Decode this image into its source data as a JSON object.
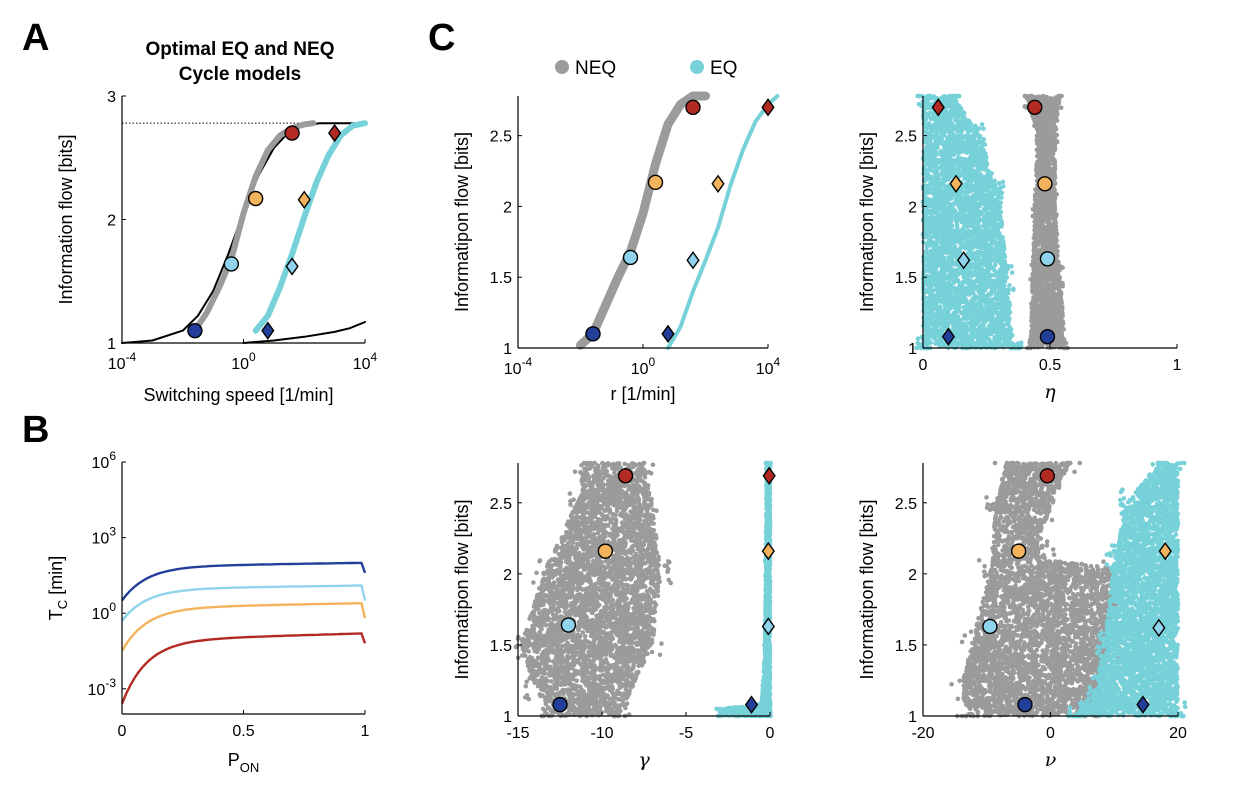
{
  "labels": {
    "A": "A",
    "B": "B",
    "C": "C"
  },
  "colors": {
    "neq_gray": "#9b9b9b",
    "eq_cyan": "#77d1d8",
    "dark_blue": "#233f9a",
    "light_blue": "#8fd3ec",
    "orange": "#f3b35c",
    "red": "#b32a23",
    "black": "#000000"
  },
  "legend": {
    "neq": "NEQ",
    "eq": "EQ"
  },
  "chart_data": [
    {
      "id": "A",
      "type": "line",
      "title_line1": "Optimal EQ and NEQ",
      "title_line2": "Cycle models",
      "xlabel": "Switching speed [1/min]",
      "ylabel": "Information flow [bits]",
      "xscale": "log10",
      "xlim": [
        -4,
        4
      ],
      "ylim": [
        1,
        3
      ],
      "xticks": [
        {
          "v": -4,
          "base": "10",
          "exp": "-4"
        },
        {
          "v": 0,
          "base": "10",
          "exp": "0"
        },
        {
          "v": 4,
          "base": "10",
          "exp": "4"
        }
      ],
      "yticks": [
        {
          "v": 1,
          "label": "1"
        },
        {
          "v": 2,
          "label": "2"
        },
        {
          "v": 3,
          "label": "3"
        }
      ],
      "dotted_max": 2.78,
      "series": [
        {
          "name": "NEQ envelope",
          "color": "black",
          "width": 2,
          "x": [
            -4,
            -3,
            -2,
            -1.5,
            -1,
            -0.5,
            0,
            0.5,
            1,
            1.5,
            2,
            2.5,
            3,
            3.5,
            4
          ],
          "y": [
            1.0,
            1.02,
            1.1,
            1.22,
            1.42,
            1.72,
            2.06,
            2.36,
            2.58,
            2.71,
            2.76,
            2.78,
            2.78,
            2.78,
            2.78
          ]
        },
        {
          "name": "NEQ",
          "color": "neq_gray",
          "width": 6,
          "x": [
            -1.6,
            -1.2,
            -0.8,
            -0.4,
            0,
            0.4,
            0.8,
            1.2,
            1.6,
            2.0,
            2.3
          ],
          "y": [
            1.1,
            1.25,
            1.45,
            1.68,
            2.05,
            2.35,
            2.56,
            2.68,
            2.74,
            2.77,
            2.78
          ]
        },
        {
          "name": "EQ",
          "color": "eq_cyan",
          "width": 6,
          "x": [
            0.4,
            0.8,
            1.2,
            1.6,
            2.0,
            2.4,
            2.8,
            3.2,
            3.6,
            4.0
          ],
          "y": [
            1.1,
            1.22,
            1.45,
            1.72,
            2.02,
            2.3,
            2.52,
            2.68,
            2.76,
            2.78
          ]
        },
        {
          "name": "Lower curve",
          "color": "black",
          "width": 2,
          "x": [
            0,
            1,
            2,
            3,
            3.5,
            4
          ],
          "y": [
            1.0,
            1.02,
            1.05,
            1.09,
            1.12,
            1.17
          ]
        }
      ],
      "markers": [
        {
          "shape": "circle",
          "color": "dark_blue",
          "x": -1.6,
          "y": 1.1
        },
        {
          "shape": "circle",
          "color": "light_blue",
          "x": -0.4,
          "y": 1.64
        },
        {
          "shape": "circle",
          "color": "orange",
          "x": 0.4,
          "y": 2.17
        },
        {
          "shape": "circle",
          "color": "red",
          "x": 1.6,
          "y": 2.7
        },
        {
          "shape": "diamond",
          "color": "dark_blue",
          "x": 0.8,
          "y": 1.1
        },
        {
          "shape": "diamond",
          "color": "light_blue",
          "x": 1.6,
          "y": 1.62
        },
        {
          "shape": "diamond",
          "color": "orange",
          "x": 2.0,
          "y": 2.16
        },
        {
          "shape": "diamond",
          "color": "red",
          "x": 3.0,
          "y": 2.7
        }
      ]
    },
    {
      "id": "B",
      "type": "line",
      "xlabel_main": "P",
      "xlabel_sub": "ON",
      "ylabel_main": "T",
      "ylabel_sub": "C",
      "ylabel_rest": " [min]",
      "yscale": "log10",
      "xlim": [
        0,
        1
      ],
      "ylim": [
        -4,
        6
      ],
      "xticks": [
        {
          "v": 0,
          "label": "0"
        },
        {
          "v": 0.5,
          "label": "0.5"
        },
        {
          "v": 1,
          "label": "1"
        }
      ],
      "yticks": [
        {
          "v": -3,
          "base": "10",
          "exp": "-3"
        },
        {
          "v": 0,
          "base": "10",
          "exp": "0"
        },
        {
          "v": 3,
          "base": "10",
          "exp": "3"
        },
        {
          "v": 6,
          "base": "10",
          "exp": "6"
        }
      ],
      "series": [
        {
          "name": "dark blue",
          "color": "dark_blue",
          "top": 2.0,
          "bottom": 0.5,
          "end": 1.6
        },
        {
          "name": "light blue",
          "color": "light_blue",
          "top": 1.1,
          "bottom": -0.3,
          "end": 0.5
        },
        {
          "name": "orange",
          "color": "orange",
          "top": 0.4,
          "bottom": -1.5,
          "end": -0.2
        },
        {
          "name": "red",
          "color": "red",
          "top": -0.8,
          "bottom": -3.6,
          "end": -1.2
        }
      ]
    },
    {
      "id": "C1",
      "type": "scatter",
      "xlabel": "r [1/min]",
      "ylabel": "Informatipon flow [bits]",
      "xscale": "log10",
      "xlim": [
        -4,
        4
      ],
      "ylim": [
        1,
        2.78
      ],
      "xticks": [
        {
          "v": -4,
          "base": "10",
          "exp": "-4"
        },
        {
          "v": 0,
          "base": "10",
          "exp": "0"
        },
        {
          "v": 4,
          "base": "10",
          "exp": "4"
        }
      ],
      "yticks": [
        {
          "v": 1,
          "label": "1"
        },
        {
          "v": 1.5,
          "label": "1.5"
        },
        {
          "v": 2,
          "label": "2"
        },
        {
          "v": 2.5,
          "label": "2.5"
        }
      ],
      "bands": [
        {
          "color": "neq_gray",
          "width": 9,
          "x": [
            -2.0,
            -1.6,
            -1.2,
            -0.8,
            -0.4,
            0,
            0.4,
            0.8,
            1.2,
            1.6,
            2.0
          ],
          "y": [
            1.02,
            1.1,
            1.3,
            1.5,
            1.68,
            1.95,
            2.3,
            2.58,
            2.72,
            2.78,
            2.78
          ]
        },
        {
          "color": "eq_cyan",
          "width": 4,
          "x": [
            0.8,
            1.2,
            1.6,
            2.0,
            2.4,
            2.8,
            3.2,
            3.6,
            4.0,
            4.4
          ],
          "y": [
            1.0,
            1.15,
            1.4,
            1.62,
            1.85,
            2.15,
            2.4,
            2.6,
            2.72,
            2.78
          ]
        }
      ],
      "markers": [
        {
          "shape": "circle",
          "color": "dark_blue",
          "x": -1.6,
          "y": 1.1
        },
        {
          "shape": "circle",
          "color": "light_blue",
          "x": -0.4,
          "y": 1.64
        },
        {
          "shape": "circle",
          "color": "orange",
          "x": 0.4,
          "y": 2.17
        },
        {
          "shape": "circle",
          "color": "red",
          "x": 1.6,
          "y": 2.7
        },
        {
          "shape": "diamond",
          "color": "dark_blue",
          "x": 0.8,
          "y": 1.1
        },
        {
          "shape": "diamond",
          "color": "light_blue",
          "x": 1.6,
          "y": 1.62
        },
        {
          "shape": "diamond",
          "color": "orange",
          "x": 2.4,
          "y": 2.16
        },
        {
          "shape": "diamond",
          "color": "red",
          "x": 4.0,
          "y": 2.7
        }
      ]
    },
    {
      "id": "C2",
      "type": "scatter",
      "xlabel": "η",
      "ylabel": "Informatipon flow [bits]",
      "xlim": [
        0,
        1
      ],
      "ylim": [
        1,
        2.78
      ],
      "xticks": [
        {
          "v": 0,
          "label": "0"
        },
        {
          "v": 0.5,
          "label": "0.5"
        },
        {
          "v": 1,
          "label": "1"
        }
      ],
      "yticks": [
        {
          "v": 1,
          "label": "1"
        },
        {
          "v": 1.5,
          "label": "1.5"
        },
        {
          "v": 2,
          "label": "2"
        },
        {
          "v": 2.5,
          "label": "2.5"
        }
      ],
      "clouds": [
        {
          "color": "eq_cyan",
          "n": 3500,
          "poly": [
            [
              0.0,
              1.0
            ],
            [
              0.36,
              1.0
            ],
            [
              0.33,
              1.5
            ],
            [
              0.3,
              2.1
            ],
            [
              0.22,
              2.5
            ],
            [
              0.12,
              2.78
            ],
            [
              0.0,
              2.78
            ]
          ]
        },
        {
          "color": "neq_gray",
          "n": 2000,
          "poly": [
            [
              0.42,
              1.0
            ],
            [
              0.56,
              1.0
            ],
            [
              0.54,
              1.5
            ],
            [
              0.52,
              2.0
            ],
            [
              0.52,
              2.5
            ],
            [
              0.54,
              2.78
            ],
            [
              0.41,
              2.78
            ],
            [
              0.45,
              2.5
            ],
            [
              0.44,
              2.0
            ],
            [
              0.43,
              1.5
            ]
          ]
        }
      ],
      "markers": [
        {
          "shape": "circle",
          "color": "dark_blue",
          "x": 0.49,
          "y": 1.08
        },
        {
          "shape": "circle",
          "color": "light_blue",
          "x": 0.49,
          "y": 1.63
        },
        {
          "shape": "circle",
          "color": "orange",
          "x": 0.48,
          "y": 2.16
        },
        {
          "shape": "circle",
          "color": "red",
          "x": 0.44,
          "y": 2.7
        },
        {
          "shape": "diamond",
          "color": "dark_blue",
          "x": 0.1,
          "y": 1.08
        },
        {
          "shape": "diamond",
          "color": "light_blue",
          "x": 0.16,
          "y": 1.62
        },
        {
          "shape": "diamond",
          "color": "orange",
          "x": 0.13,
          "y": 2.16
        },
        {
          "shape": "diamond",
          "color": "red",
          "x": 0.06,
          "y": 2.7
        }
      ]
    },
    {
      "id": "C3",
      "type": "scatter",
      "xlabel": "γ",
      "ylabel": "Informatipon flow [bits]",
      "xlim": [
        -15,
        0
      ],
      "ylim": [
        1,
        2.78
      ],
      "xticks": [
        {
          "v": -15,
          "label": "-15"
        },
        {
          "v": -10,
          "label": "-10"
        },
        {
          "v": -5,
          "label": "-5"
        },
        {
          "v": 0,
          "label": "0"
        }
      ],
      "yticks": [
        {
          "v": 1,
          "label": "1"
        },
        {
          "v": 1.5,
          "label": "1.5"
        },
        {
          "v": 2,
          "label": "2"
        },
        {
          "v": 2.5,
          "label": "2.5"
        }
      ],
      "clouds": [
        {
          "color": "neq_gray",
          "n": 4000,
          "poly": [
            [
              -13.0,
              1.0
            ],
            [
              -9.0,
              1.0
            ],
            [
              -7.0,
              1.5
            ],
            [
              -6.5,
              2.0
            ],
            [
              -7.0,
              2.5
            ],
            [
              -7.5,
              2.78
            ],
            [
              -11.0,
              2.78
            ],
            [
              -11.5,
              2.5
            ],
            [
              -13.5,
              2.0
            ],
            [
              -14.8,
              1.5
            ],
            [
              -14.0,
              1.2
            ]
          ]
        },
        {
          "color": "eq_cyan",
          "n": 1500,
          "poly": [
            [
              -0.6,
              1.0
            ],
            [
              0.0,
              1.0
            ],
            [
              0.0,
              2.78
            ],
            [
              -0.2,
              2.78
            ],
            [
              -0.25,
              2.0
            ],
            [
              -0.3,
              1.5
            ],
            [
              -0.4,
              1.2
            ]
          ]
        },
        {
          "color": "eq_cyan",
          "n": 300,
          "poly": [
            [
              -3.0,
              1.0
            ],
            [
              -0.5,
              1.0
            ],
            [
              -0.5,
              1.08
            ],
            [
              -3.0,
              1.05
            ]
          ]
        }
      ],
      "markers": [
        {
          "shape": "circle",
          "color": "dark_blue",
          "x": -12.5,
          "y": 1.08
        },
        {
          "shape": "circle",
          "color": "light_blue",
          "x": -12.0,
          "y": 1.64
        },
        {
          "shape": "circle",
          "color": "orange",
          "x": -9.8,
          "y": 2.16
        },
        {
          "shape": "circle",
          "color": "red",
          "x": -8.6,
          "y": 2.69
        },
        {
          "shape": "diamond",
          "color": "dark_blue",
          "x": -1.1,
          "y": 1.08
        },
        {
          "shape": "diamond",
          "color": "light_blue",
          "x": -0.1,
          "y": 1.63
        },
        {
          "shape": "diamond",
          "color": "orange",
          "x": -0.1,
          "y": 2.16
        },
        {
          "shape": "diamond",
          "color": "red",
          "x": -0.05,
          "y": 2.69
        }
      ]
    },
    {
      "id": "C4",
      "type": "scatter",
      "xlabel": "ν",
      "ylabel": "Informatipon flow [bits]",
      "xlim": [
        -20,
        20
      ],
      "ylim": [
        1,
        2.78
      ],
      "xticks": [
        {
          "v": -20,
          "label": "-20"
        },
        {
          "v": 0,
          "label": "0"
        },
        {
          "v": 20,
          "label": "20"
        }
      ],
      "yticks": [
        {
          "v": 1,
          "label": "1"
        },
        {
          "v": 1.5,
          "label": "1.5"
        },
        {
          "v": 2,
          "label": "2"
        },
        {
          "v": 2.5,
          "label": "2.5"
        }
      ],
      "clouds": [
        {
          "color": "neq_gray",
          "n": 4000,
          "poly": [
            [
              -13.0,
              1.0
            ],
            [
              6.0,
              1.0
            ],
            [
              9.0,
              1.4
            ],
            [
              10.0,
              1.8
            ],
            [
              9.5,
              2.05
            ],
            [
              -1.0,
              2.1
            ],
            [
              -1.5,
              2.3
            ],
            [
              3.0,
              2.78
            ],
            [
              -7.0,
              2.78
            ],
            [
              -8.5,
              2.5
            ],
            [
              -9.5,
              2.0
            ],
            [
              -12.5,
              1.5
            ],
            [
              -14.0,
              1.2
            ]
          ]
        },
        {
          "color": "eq_cyan",
          "n": 3500,
          "poly": [
            [
              4.0,
              1.0
            ],
            [
              20.0,
              1.0
            ],
            [
              20.0,
              2.78
            ],
            [
              17.0,
              2.78
            ],
            [
              12.0,
              2.5
            ],
            [
              10.0,
              2.1
            ],
            [
              8.5,
              1.5
            ],
            [
              7.0,
              1.2
            ]
          ]
        }
      ],
      "markers": [
        {
          "shape": "circle",
          "color": "dark_blue",
          "x": -4.0,
          "y": 1.08
        },
        {
          "shape": "circle",
          "color": "light_blue",
          "x": -9.5,
          "y": 1.63
        },
        {
          "shape": "circle",
          "color": "orange",
          "x": -5.0,
          "y": 2.16
        },
        {
          "shape": "circle",
          "color": "red",
          "x": -0.5,
          "y": 2.69
        },
        {
          "shape": "diamond",
          "color": "dark_blue",
          "x": 14.5,
          "y": 1.08
        },
        {
          "shape": "diamond",
          "color": "light_blue",
          "x": 17.0,
          "y": 1.62
        },
        {
          "shape": "diamond",
          "color": "orange",
          "x": 18.0,
          "y": 2.16
        }
      ]
    }
  ]
}
